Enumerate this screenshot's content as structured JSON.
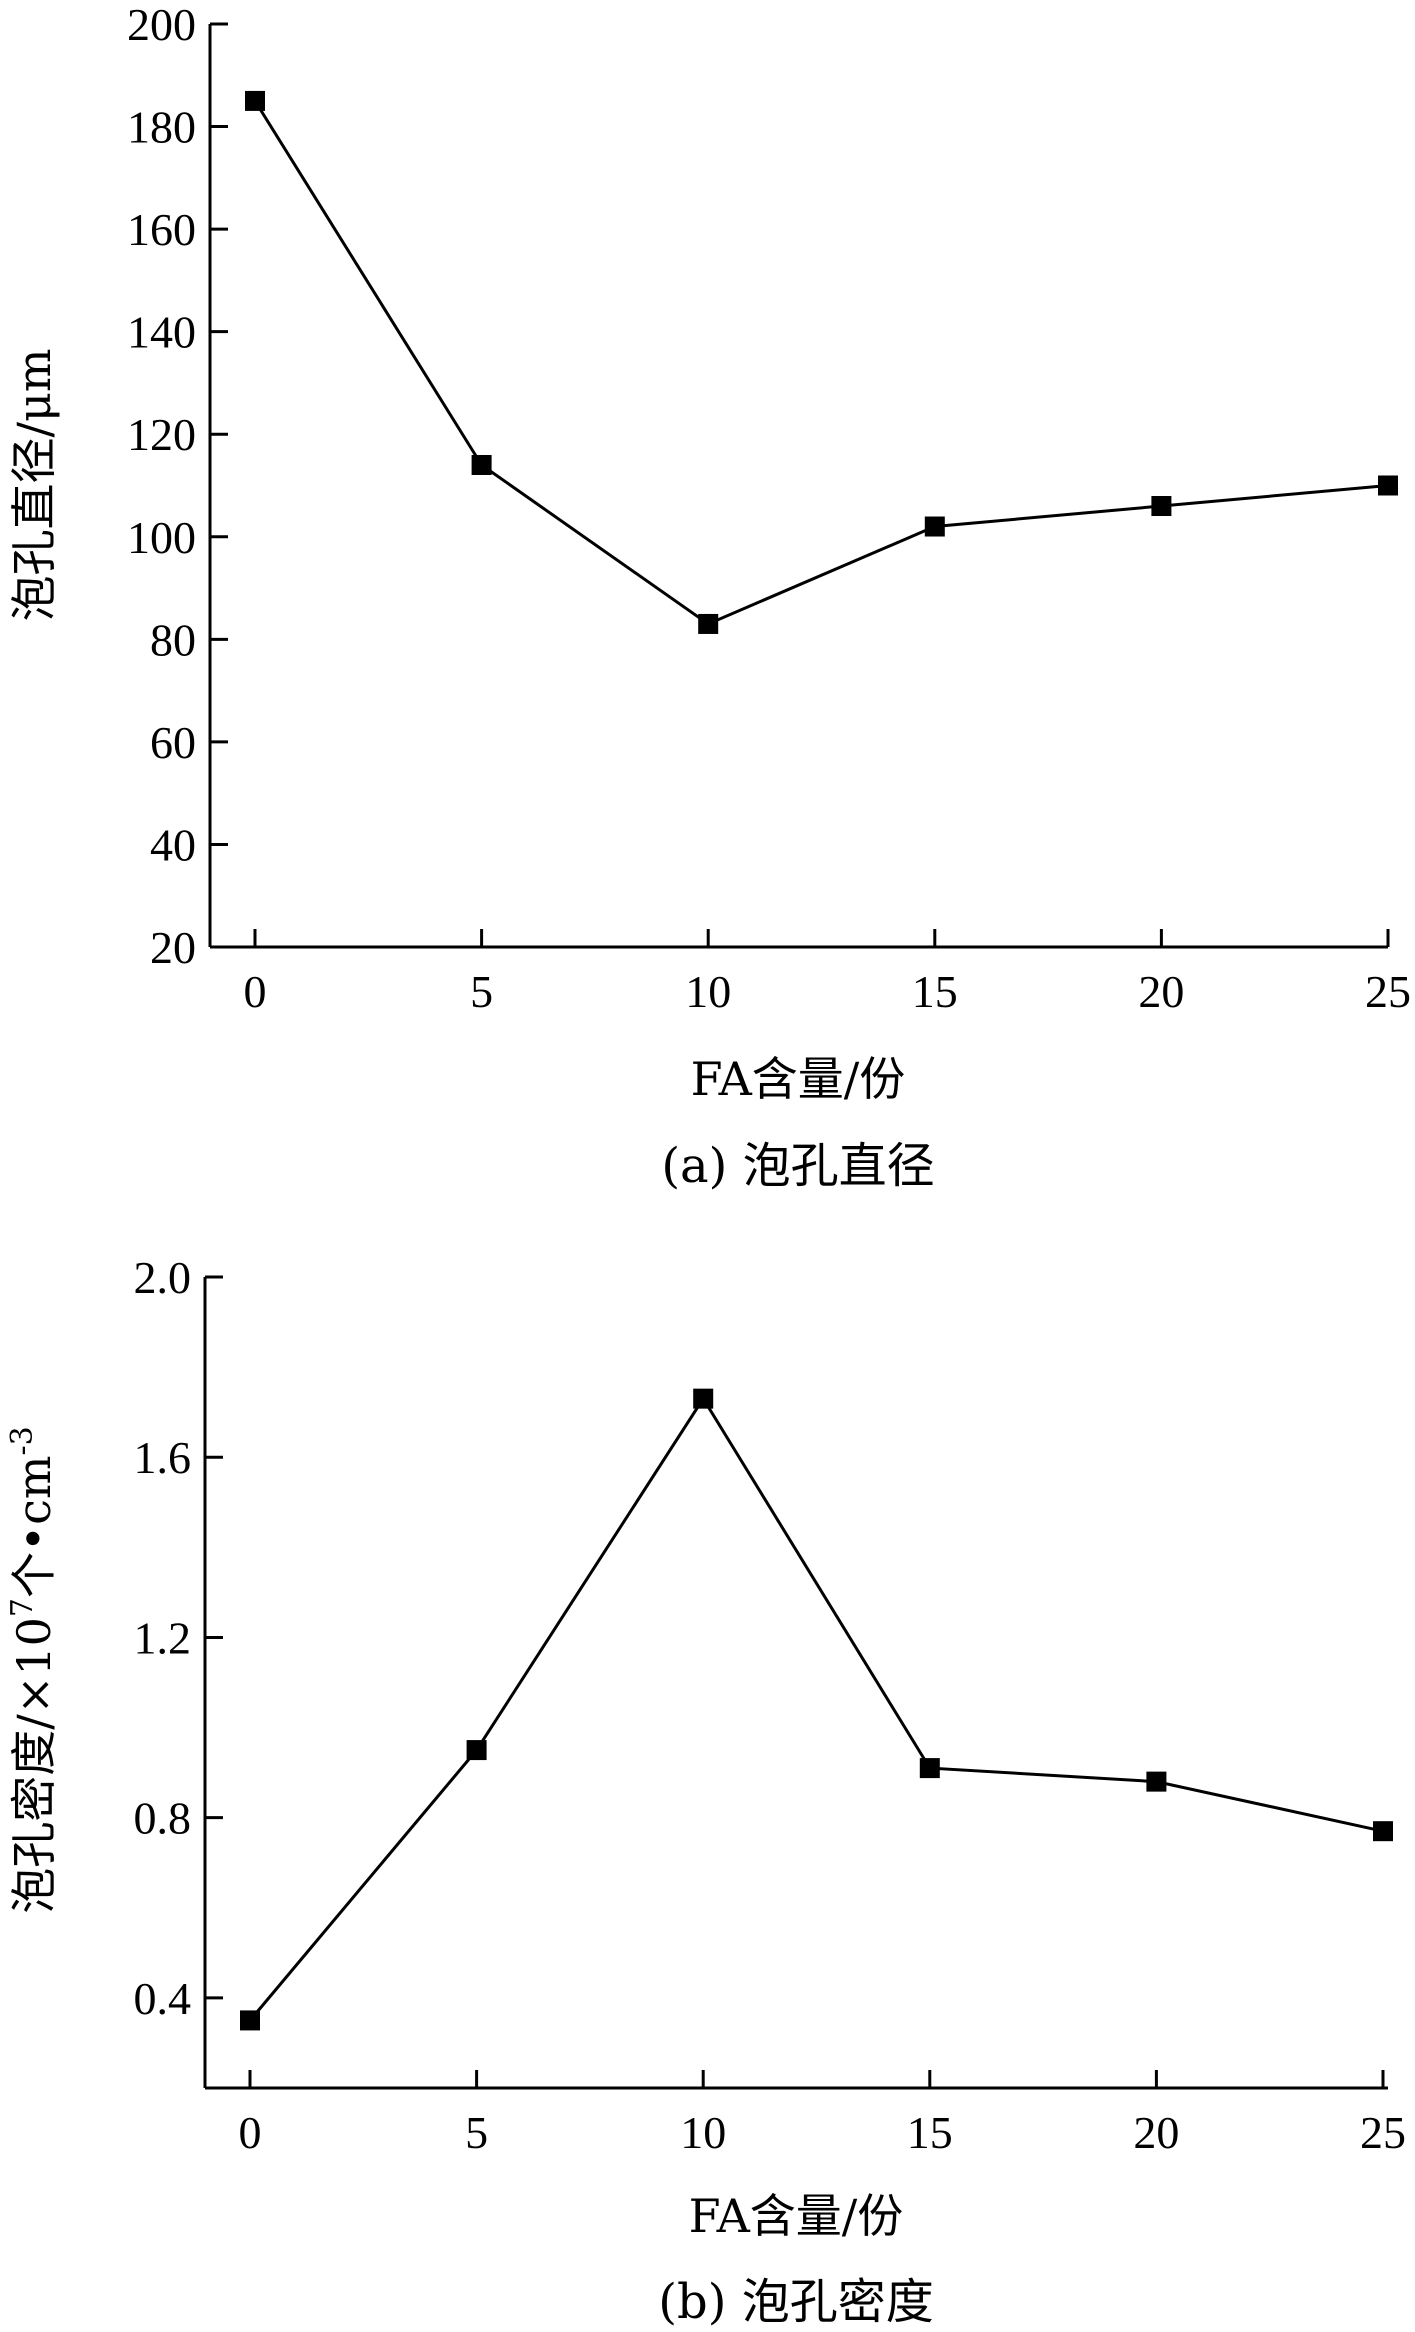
{
  "chart_data": [
    {
      "type": "line",
      "caption": "(a) 泡孔直径",
      "xlabel": "FA含量/份",
      "ylabel": "泡孔直径/μm",
      "xlim": [
        0,
        25
      ],
      "ylim": [
        20,
        200
      ],
      "xticks": [
        0,
        5,
        10,
        15,
        20,
        25
      ],
      "yticks": [
        20,
        40,
        60,
        80,
        100,
        120,
        140,
        160,
        180,
        200
      ],
      "grid": false,
      "marker": "square",
      "series": [
        {
          "x": [
            0,
            5,
            10,
            15,
            20,
            25
          ],
          "values": [
            185,
            114,
            83,
            102,
            106,
            110
          ]
        }
      ]
    },
    {
      "type": "line",
      "caption": "(b) 泡孔密度",
      "xlabel": "FA含量/份",
      "ylabel_main": "泡孔密度/×10",
      "ylabel_sup1": "7",
      "ylabel_mid": "个•cm",
      "ylabel_sup2": "-3",
      "xlim": [
        0,
        25
      ],
      "ylim": [
        0.2,
        2.0
      ],
      "xticks": [
        0,
        5,
        10,
        15,
        20,
        25
      ],
      "yticks": [
        0.4,
        0.8,
        1.2,
        1.6,
        2.0
      ],
      "ytick_labels": [
        "0.4",
        "0.8",
        "1.2",
        "1.6",
        "2.0"
      ],
      "grid": false,
      "marker": "square",
      "series": [
        {
          "x": [
            0,
            5,
            10,
            15,
            20,
            25
          ],
          "values": [
            0.35,
            0.95,
            1.73,
            0.91,
            0.88,
            0.77
          ]
        }
      ]
    }
  ]
}
